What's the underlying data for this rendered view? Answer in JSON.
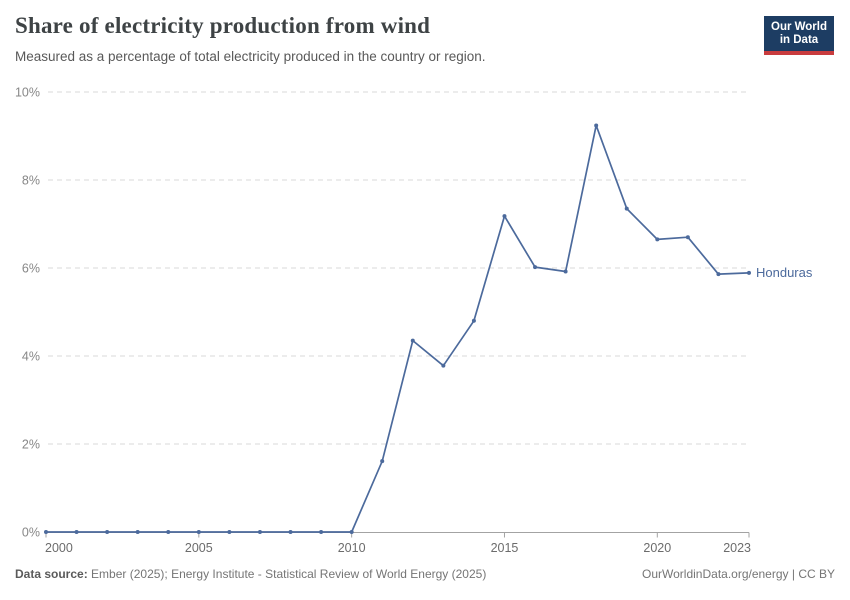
{
  "header": {
    "title": "Share of electricity production from wind",
    "subtitle": "Measured as a percentage of total electricity produced in the country or region.",
    "logo": {
      "line1": "Our World",
      "line2": "in Data",
      "bg_color": "#1d3d63",
      "stripe_color": "#c93c3e"
    }
  },
  "chart_data": {
    "type": "line",
    "title": "Share of electricity production from wind",
    "xlabel": "",
    "ylabel": "",
    "xlim": [
      2000,
      2023
    ],
    "ylim": [
      0,
      10
    ],
    "x_ticks": [
      2000,
      2005,
      2010,
      2015,
      2020,
      2023
    ],
    "y_ticks": [
      0,
      2,
      4,
      6,
      8,
      10
    ],
    "y_tick_suffix": "%",
    "grid": "horizontal-dashed",
    "legend_position": "end-of-line-label",
    "series": [
      {
        "name": "Honduras",
        "color": "#4c6a9c",
        "x": [
          2000,
          2001,
          2002,
          2003,
          2004,
          2005,
          2006,
          2007,
          2008,
          2009,
          2010,
          2011,
          2012,
          2013,
          2014,
          2015,
          2016,
          2017,
          2018,
          2019,
          2020,
          2021,
          2022,
          2023
        ],
        "values": [
          0,
          0,
          0,
          0,
          0,
          0,
          0,
          0,
          0,
          0,
          0,
          1.61,
          4.35,
          3.78,
          4.8,
          7.18,
          6.02,
          5.92,
          9.24,
          7.35,
          6.65,
          6.7,
          5.86,
          5.89
        ]
      }
    ]
  },
  "footer": {
    "source_label": "Data source:",
    "source_text": "Ember (2025); Energy Institute - Statistical Review of World Energy (2025)",
    "right_text": "OurWorldinData.org/energy | CC BY"
  }
}
